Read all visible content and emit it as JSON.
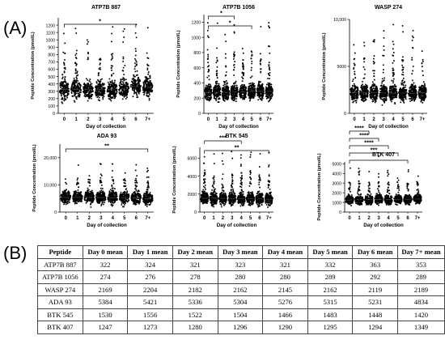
{
  "figure": {
    "panel_a_label": "(A)",
    "panel_b_label": "(B)"
  },
  "chart_data": [
    {
      "type": "scatter",
      "title": "ATP7B 887",
      "xlabel": "Day of collection",
      "ylabel": "Peptide Concentration (pmol/L)",
      "categories": [
        "0",
        "1",
        "2",
        "3",
        "4",
        "5",
        "6",
        "7+"
      ],
      "center": [
        322,
        324,
        321,
        323,
        321,
        332,
        363,
        353
      ],
      "ylim": [
        0,
        1300
      ],
      "yticks": [
        0,
        100,
        200,
        300,
        400,
        500,
        600,
        700,
        800,
        900,
        1000,
        1100,
        1200
      ],
      "spread": 130,
      "max_outlier": 1250,
      "significance": [
        {
          "from": 0,
          "to": 6,
          "label": "*"
        }
      ]
    },
    {
      "type": "scatter",
      "title": "ATP7B 1056",
      "xlabel": "Day of collection",
      "ylabel": "Peptide Concentration (pmol/L)",
      "categories": [
        "0",
        "1",
        "2",
        "3",
        "4",
        "5",
        "6",
        "7+"
      ],
      "center": [
        274,
        276,
        278,
        280,
        280,
        289,
        292,
        289
      ],
      "ylim": [
        0,
        1300
      ],
      "yticks": [
        0,
        200,
        400,
        600,
        800,
        1000,
        1200
      ],
      "spread": 110,
      "max_outlier": 1200,
      "significance": [
        {
          "from": 0,
          "to": 3,
          "label": "*"
        },
        {
          "from": 0,
          "to": 5,
          "label": "*"
        }
      ]
    },
    {
      "type": "scatter",
      "title": "WASP 274",
      "xlabel": "Day of collection",
      "ylabel": "Peptide Concentration (pmol/L)",
      "categories": [
        "0",
        "1",
        "2",
        "3",
        "4",
        "5",
        "6",
        "7+"
      ],
      "center": [
        2169,
        2204,
        2182,
        2162,
        2145,
        2162,
        2119,
        2189
      ],
      "ylim": [
        0,
        10000
      ],
      "yticks": [
        0,
        5000,
        10000
      ],
      "ytick_labels": [
        "0",
        "5000",
        "10,000"
      ],
      "spread": 900,
      "max_outlier": 9500,
      "significance": []
    },
    {
      "type": "scatter",
      "title": "ADA 93",
      "xlabel": "Day of collection",
      "ylabel": "Peptide Concentration (pmol/L)",
      "categories": [
        "0",
        "1",
        "2",
        "3",
        "4",
        "5",
        "6",
        "7+"
      ],
      "center": [
        5384,
        5421,
        5336,
        5304,
        5276,
        5315,
        5231,
        4834
      ],
      "ylim": [
        0,
        25000
      ],
      "yticks": [
        0,
        10000,
        20000
      ],
      "ytick_labels": [
        "0",
        "10,000",
        "20,000"
      ],
      "spread": 2400,
      "max_outlier": 18000,
      "significance": [
        {
          "from": 0,
          "to": 7,
          "label": "**"
        }
      ]
    },
    {
      "type": "scatter",
      "title": "BTK 545",
      "xlabel": "Day of collection",
      "ylabel": "Peptide Concentration (pmol/L)",
      "categories": [
        "0",
        "1",
        "2",
        "3",
        "4",
        "5",
        "6",
        "7+"
      ],
      "center": [
        1530,
        1556,
        1522,
        1504,
        1466,
        1483,
        1448,
        1420
      ],
      "ylim": [
        0,
        7200
      ],
      "yticks": [
        0,
        2000,
        4000,
        6000
      ],
      "spread": 700,
      "max_outlier": 6800,
      "significance": [
        {
          "from": 0,
          "to": 4,
          "label": "***"
        },
        {
          "from": 0,
          "to": 7,
          "label": "**"
        }
      ]
    },
    {
      "type": "scatter",
      "title": "BTK 407",
      "xlabel": "Day of collection",
      "ylabel": "Peptide Concentration (pmol/L)",
      "categories": [
        "0",
        "1",
        "2",
        "3",
        "4",
        "5",
        "6",
        "7+"
      ],
      "center": [
        1247,
        1273,
        1280,
        1296,
        1290,
        1295,
        1294,
        1349
      ],
      "ylim": [
        0,
        5200
      ],
      "yticks": [
        0,
        1000,
        2000,
        3000,
        4000,
        5000
      ],
      "spread": 500,
      "max_outlier": 4600,
      "significance": [
        {
          "from": 0,
          "to": 2,
          "label": "****"
        },
        {
          "from": 0,
          "to": 3,
          "label": "****"
        },
        {
          "from": 0,
          "to": 4,
          "label": "****"
        },
        {
          "from": 0,
          "to": 5,
          "label": "***"
        },
        {
          "from": 0,
          "to": 6,
          "label": "*"
        }
      ]
    },
    {
      "type": "table",
      "columns": [
        "Peptide",
        "Day 0 mean",
        "Day 1 mean",
        "Day 2 mean",
        "Day 3 mean",
        "Day 4 mean",
        "Day 5 mean",
        "Day 6 mean",
        "Day 7+ mean"
      ],
      "rows": [
        [
          "ATP7B 887",
          "322",
          "324",
          "321",
          "323",
          "321",
          "332",
          "363",
          "353"
        ],
        [
          "ATP7B 1056",
          "274",
          "276",
          "278",
          "280",
          "280",
          "289",
          "292",
          "289"
        ],
        [
          "WASP 274",
          "2169",
          "2204",
          "2182",
          "2162",
          "2145",
          "2162",
          "2119",
          "2189"
        ],
        [
          "ADA 93",
          "5384",
          "5421",
          "5336",
          "5304",
          "5276",
          "5315",
          "5231",
          "4834"
        ],
        [
          "BTK 545",
          "1530",
          "1556",
          "1522",
          "1504",
          "1466",
          "1483",
          "1448",
          "1420"
        ],
        [
          "BTK 407",
          "1247",
          "1273",
          "1280",
          "1296",
          "1290",
          "1295",
          "1294",
          "1349"
        ]
      ]
    }
  ]
}
